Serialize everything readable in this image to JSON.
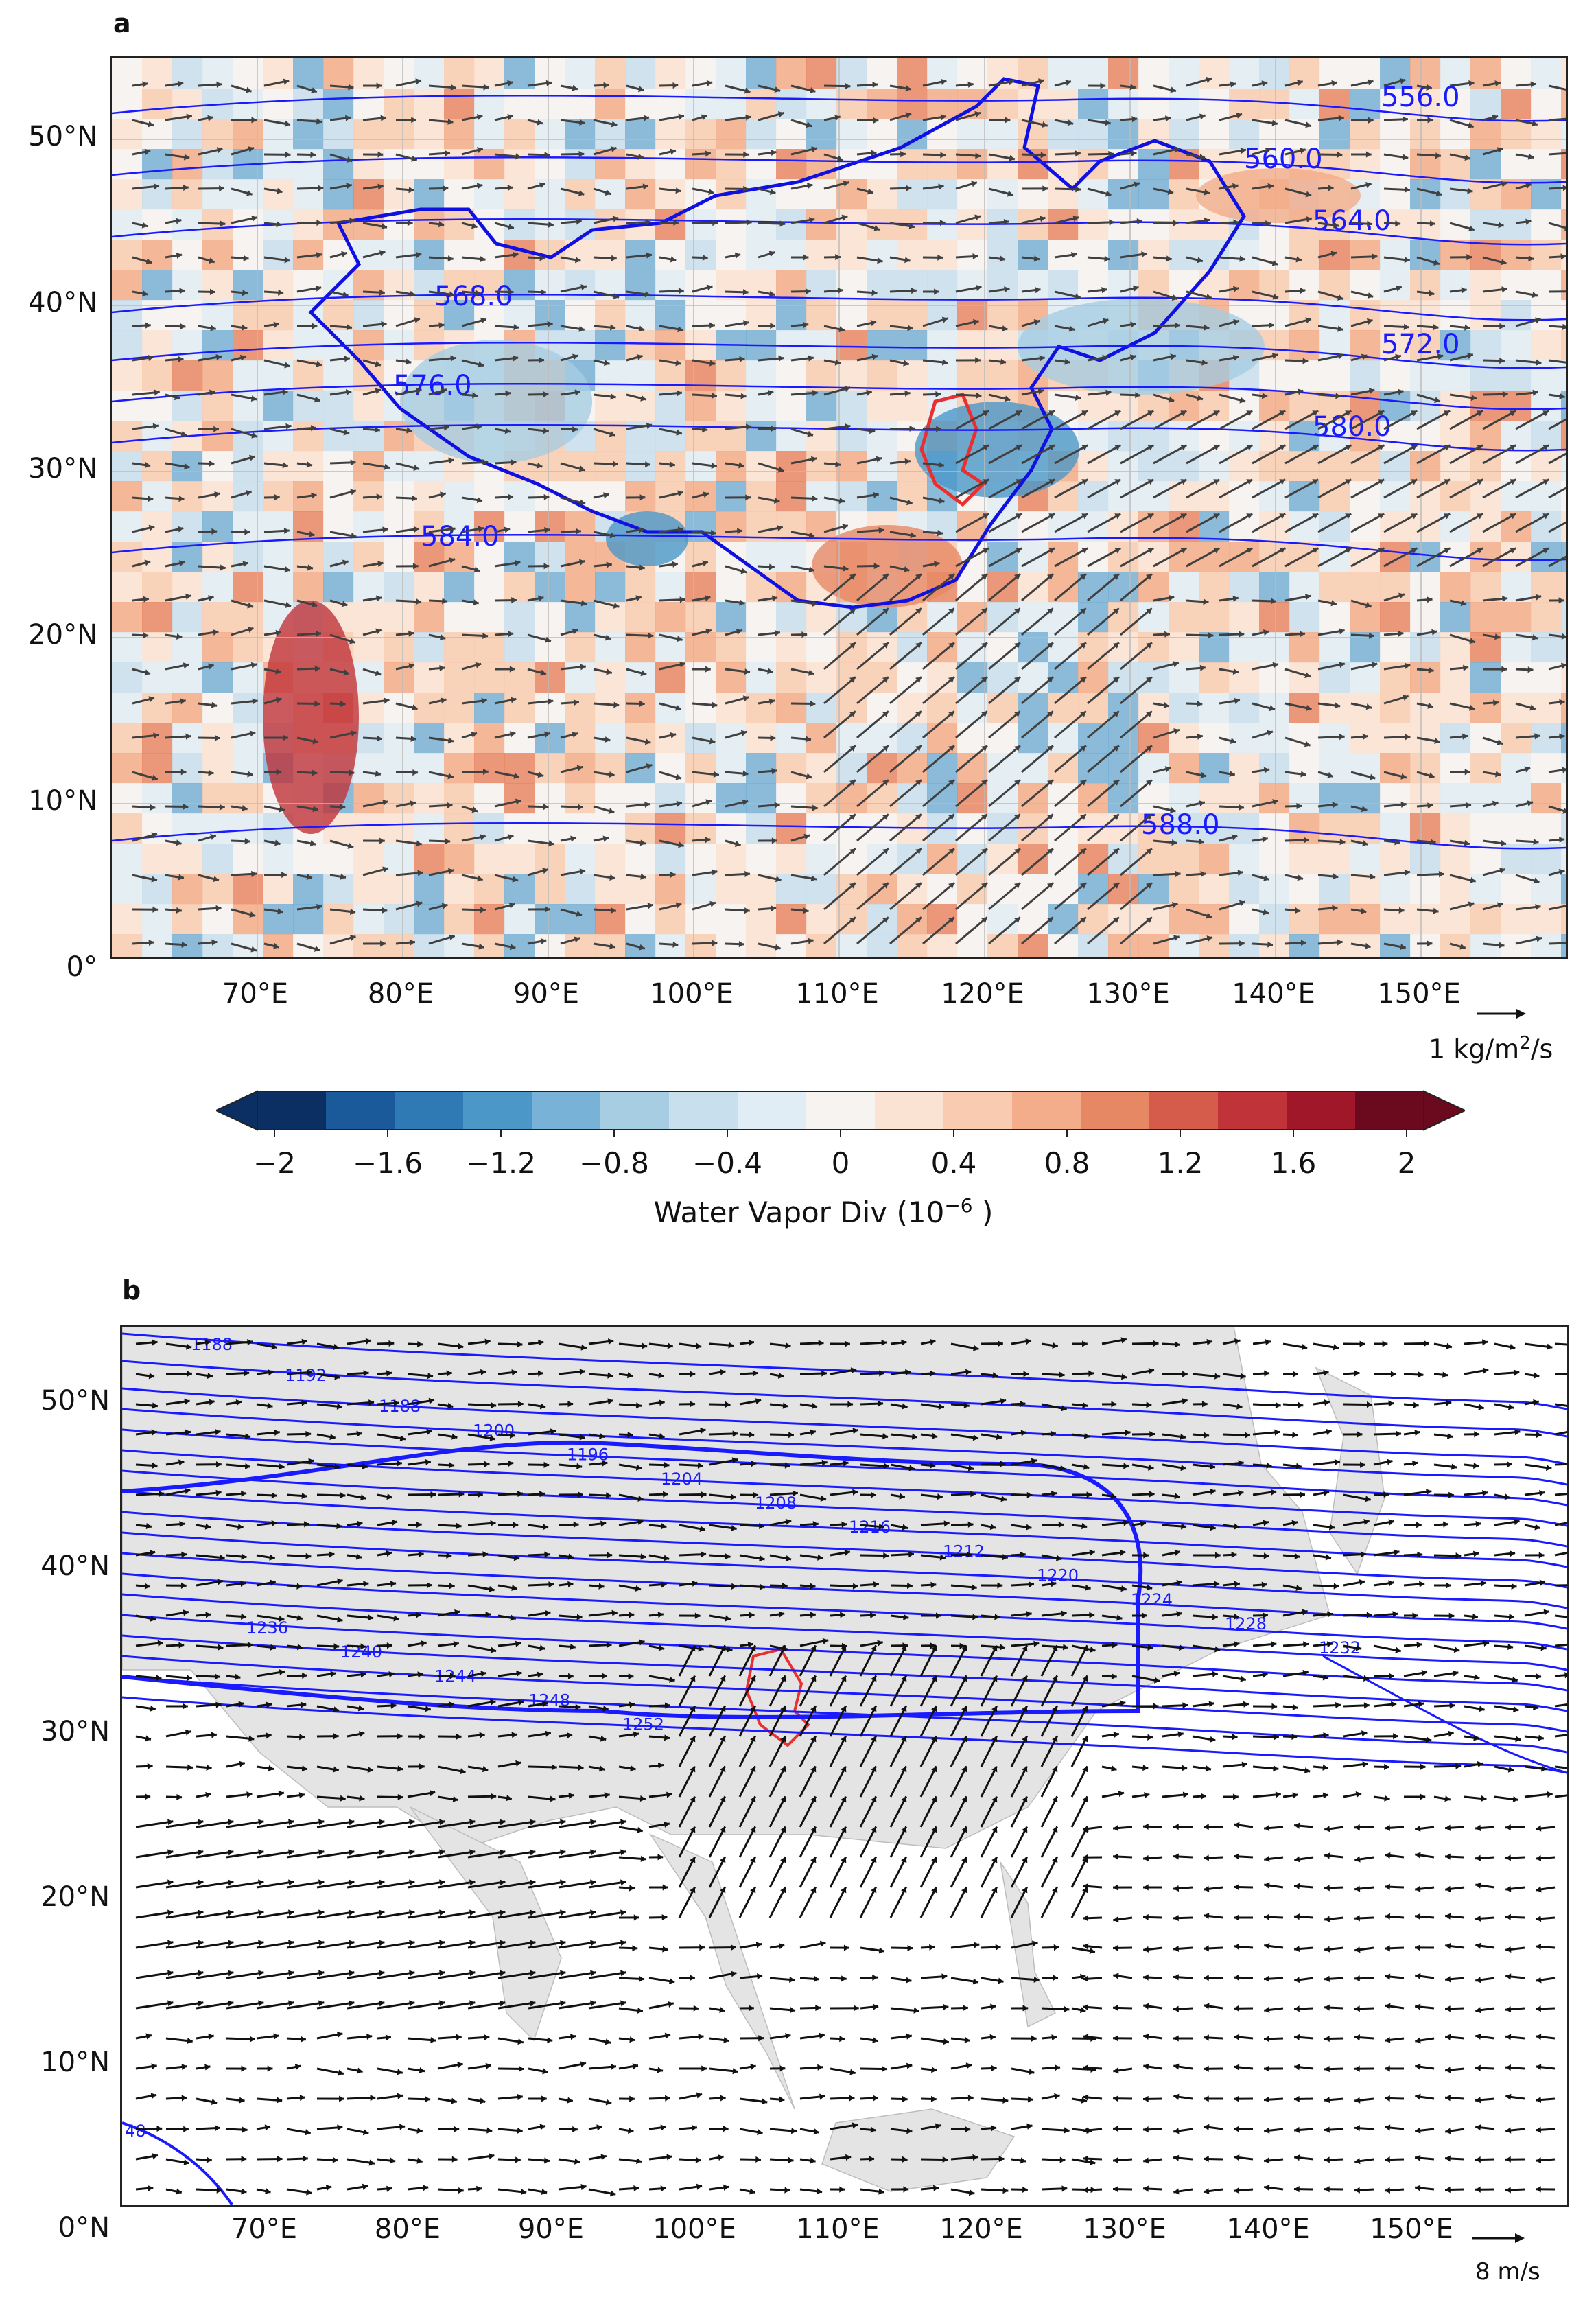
{
  "panel_a": {
    "letter": "a",
    "lat_labels": [
      "50°N",
      "40°N",
      "30°N",
      "20°N",
      "10°N",
      "0°"
    ],
    "lon_labels": [
      "70°E",
      "80°E",
      "90°E",
      "100°E",
      "110°E",
      "120°E",
      "130°E",
      "140°E",
      "150°E"
    ],
    "contour_labels": [
      "556.0",
      "560.0",
      "564.0",
      "568.0",
      "572.0",
      "576.0",
      "580.0",
      "584.0",
      "588.0"
    ],
    "vector_ref_label": "1 kg/m",
    "vector_ref_sup": "2",
    "vector_ref_suffix": "/s",
    "colors": {
      "contour": "#1a1aff",
      "boundary": "#1010e0",
      "anhui_outline": "#e83030",
      "arrows": "#404040"
    }
  },
  "colorbar": {
    "title": "Water Vapor Div (10",
    "title_sup": "−6",
    "title_suffix": " )",
    "ticks": [
      "−2",
      "−1.6",
      "−1.2",
      "−0.8",
      "−0.4",
      "0",
      "0.4",
      "0.8",
      "1.2",
      "1.6",
      "2"
    ],
    "colors": [
      "#0b2f63",
      "#1a5a9b",
      "#2f79b5",
      "#4b97c8",
      "#78b2d6",
      "#a6cde2",
      "#c8dfed",
      "#e1edf4",
      "#f6f3f1",
      "#fbe3d4",
      "#f9ccb2",
      "#f3ad8a",
      "#e78865",
      "#d55c4a",
      "#c03339",
      "#a0172a",
      "#6b0a1e"
    ]
  },
  "panel_b": {
    "letter": "b",
    "lat_labels": [
      "50°N",
      "40°N",
      "30°N",
      "20°N",
      "10°N",
      "0°N"
    ],
    "lon_labels": [
      "70°E",
      "80°E",
      "90°E",
      "100°E",
      "110°E",
      "120°E",
      "130°E",
      "140°E",
      "150°E"
    ],
    "contour_labels": [
      "1188",
      "1192",
      "1188",
      "1200",
      "1196",
      "1204",
      "1208",
      "1216",
      "1212",
      "1220",
      "1224",
      "1228",
      "1232",
      "1236",
      "1240",
      "1244",
      "1248",
      "1252",
      "48"
    ],
    "vector_ref_label": "8 m/s",
    "colors": {
      "contour": "#1a1aff",
      "land": "#e4e4e4",
      "anhui_outline": "#e83030",
      "arrows": "#111111"
    }
  }
}
